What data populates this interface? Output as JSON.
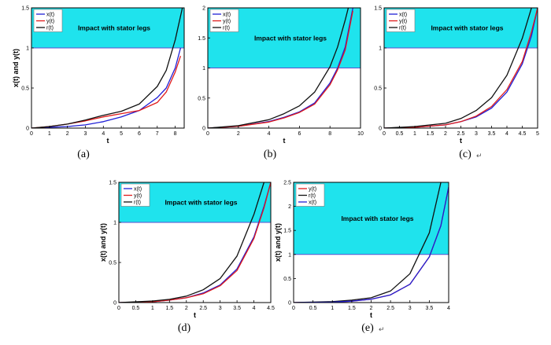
{
  "figure": {
    "caption_marks": [
      "(a)",
      "(b)",
      "(c)",
      "(d)",
      "(e)"
    ]
  },
  "chart_data": [
    {
      "type": "line",
      "panel": "a",
      "caption": "(a)",
      "xlabel": "t",
      "ylabel": "x(t) and y(t)",
      "xlim": [
        0,
        8.5
      ],
      "ylim": [
        0,
        1.5
      ],
      "xticks": [
        "0",
        "1",
        "2",
        "3",
        "4",
        "5",
        "6",
        "7",
        "8"
      ],
      "xtick_values": [
        0,
        1,
        2,
        3,
        4,
        5,
        6,
        7,
        8
      ],
      "yticks": [
        "0",
        "0.5",
        "1",
        "1.5"
      ],
      "ytick_values": [
        0,
        0.5,
        1,
        1.5
      ],
      "annotation": "Impact with stator legs",
      "threshold": 1,
      "legend": [
        "x(t)",
        "y(t)",
        "r(t)"
      ],
      "series": [
        {
          "name": "x(t)",
          "color": "#1f1fd6",
          "x": [
            0,
            1,
            2,
            3,
            4,
            5,
            6,
            7,
            7.5,
            8,
            8.3
          ],
          "y": [
            0,
            0.01,
            0.02,
            0.04,
            0.08,
            0.14,
            0.22,
            0.38,
            0.5,
            0.75,
            1.0
          ]
        },
        {
          "name": "y(t)",
          "color": "#e01b1b",
          "x": [
            0,
            1,
            2,
            3,
            4,
            5,
            6,
            7,
            7.5,
            8,
            8.3
          ],
          "y": [
            0,
            0.02,
            0.05,
            0.09,
            0.14,
            0.18,
            0.22,
            0.32,
            0.45,
            0.7,
            0.9
          ]
        },
        {
          "name": "r(t)",
          "color": "#111111",
          "x": [
            0,
            1,
            2,
            3,
            4,
            5,
            6,
            7,
            7.5,
            8,
            8.4
          ],
          "y": [
            0,
            0.02,
            0.05,
            0.1,
            0.16,
            0.21,
            0.3,
            0.52,
            0.72,
            1.1,
            1.5
          ]
        }
      ]
    },
    {
      "type": "line",
      "panel": "b",
      "caption": "(b)",
      "xlabel": "t",
      "ylabel": "",
      "xlim": [
        0,
        10
      ],
      "ylim": [
        0,
        2
      ],
      "xticks": [
        "0",
        "2",
        "4",
        "6",
        "8",
        "10"
      ],
      "xtick_values": [
        0,
        2,
        4,
        6,
        8,
        10
      ],
      "yticks": [
        "0",
        "0.5",
        "1",
        "1.5",
        "2"
      ],
      "ytick_values": [
        0,
        0.5,
        1,
        1.5,
        2
      ],
      "annotation": "Impact with stator legs",
      "threshold": 1,
      "legend": [
        "x(t)",
        "y(t)",
        "r(t)"
      ],
      "series": [
        {
          "name": "x(t)",
          "color": "#1f1fd6",
          "x": [
            0,
            2,
            4,
            5,
            6,
            7,
            8,
            8.5,
            9,
            9.5
          ],
          "y": [
            0,
            0.03,
            0.11,
            0.18,
            0.27,
            0.42,
            0.75,
            1.0,
            1.35,
            2.0
          ]
        },
        {
          "name": "y(t)",
          "color": "#e01b1b",
          "x": [
            0,
            2,
            4,
            5,
            6,
            7,
            8,
            8.5,
            9,
            9.5
          ],
          "y": [
            0,
            0.03,
            0.1,
            0.17,
            0.26,
            0.4,
            0.72,
            0.97,
            1.3,
            1.95
          ]
        },
        {
          "name": "r(t)",
          "color": "#111111",
          "x": [
            0,
            2,
            4,
            5,
            6,
            7,
            8,
            8.5,
            9,
            9.2
          ],
          "y": [
            0,
            0.04,
            0.14,
            0.24,
            0.37,
            0.6,
            1.02,
            1.35,
            1.8,
            2.0
          ]
        }
      ]
    },
    {
      "type": "line",
      "panel": "c",
      "caption": "(c)",
      "xlabel": "t",
      "ylabel": "",
      "xlim": [
        0,
        5
      ],
      "ylim": [
        0,
        1.5
      ],
      "xticks": [
        "0",
        "0.5",
        "1",
        "1.5",
        "2",
        "2.5",
        "3",
        "3.5",
        "4",
        "4.5",
        "5"
      ],
      "xtick_values": [
        0,
        0.5,
        1,
        1.5,
        2,
        2.5,
        3,
        3.5,
        4,
        4.5,
        5
      ],
      "yticks": [
        "0",
        "0.5",
        "1",
        "1.5"
      ],
      "ytick_values": [
        0,
        0.5,
        1,
        1.5
      ],
      "annotation": "Impact with stator legs",
      "threshold": 1,
      "legend": [
        "x(t)",
        "y(t)",
        "r(t)"
      ],
      "series": [
        {
          "name": "x(t)",
          "color": "#1f1fd6",
          "x": [
            0,
            1,
            2,
            2.5,
            3,
            3.5,
            4,
            4.5,
            4.8,
            5
          ],
          "y": [
            0,
            0.01,
            0.04,
            0.08,
            0.14,
            0.25,
            0.45,
            0.8,
            1.15,
            1.5
          ]
        },
        {
          "name": "y(t)",
          "color": "#e01b1b",
          "x": [
            0,
            1,
            2,
            2.5,
            3,
            3.5,
            4,
            4.5,
            4.8,
            5
          ],
          "y": [
            0,
            0.01,
            0.04,
            0.08,
            0.15,
            0.27,
            0.48,
            0.83,
            1.2,
            1.5
          ]
        },
        {
          "name": "r(t)",
          "color": "#111111",
          "x": [
            0,
            1,
            2,
            2.5,
            3,
            3.5,
            4,
            4.5,
            4.8
          ],
          "y": [
            0,
            0.02,
            0.06,
            0.12,
            0.22,
            0.38,
            0.66,
            1.12,
            1.5
          ]
        }
      ]
    },
    {
      "type": "line",
      "panel": "d",
      "caption": "(d)",
      "xlabel": "t",
      "ylabel": "x(t) and y(t)",
      "xlim": [
        0,
        4.5
      ],
      "ylim": [
        0,
        1.5
      ],
      "xticks": [
        "0",
        "0.5",
        "1",
        "1.5",
        "2",
        "2.5",
        "3",
        "3.5",
        "4",
        "4.5"
      ],
      "xtick_values": [
        0,
        0.5,
        1,
        1.5,
        2,
        2.5,
        3,
        3.5,
        4,
        4.5
      ],
      "yticks": [
        "0",
        "0.5",
        "1",
        "1.5"
      ],
      "ytick_values": [
        0,
        0.5,
        1,
        1.5
      ],
      "annotation": "Impact with stator legs",
      "threshold": 1,
      "legend": [
        "x(t)",
        "y(t)",
        "r(t)"
      ],
      "series": [
        {
          "name": "x(t)",
          "color": "#1f1fd6",
          "x": [
            0,
            1,
            1.5,
            2,
            2.5,
            3,
            3.5,
            4,
            4.3,
            4.5
          ],
          "y": [
            0,
            0.01,
            0.03,
            0.06,
            0.12,
            0.22,
            0.42,
            0.82,
            1.2,
            1.5
          ]
        },
        {
          "name": "y(t)",
          "color": "#e01b1b",
          "x": [
            0,
            1,
            1.5,
            2,
            2.5,
            3,
            3.5,
            4,
            4.3,
            4.5
          ],
          "y": [
            0,
            0.01,
            0.03,
            0.06,
            0.11,
            0.21,
            0.4,
            0.8,
            1.18,
            1.5
          ]
        },
        {
          "name": "r(t)",
          "color": "#111111",
          "x": [
            0,
            1,
            1.5,
            2,
            2.5,
            3,
            3.5,
            4,
            4.3
          ],
          "y": [
            0,
            0.02,
            0.04,
            0.08,
            0.16,
            0.3,
            0.58,
            1.1,
            1.5
          ]
        }
      ]
    },
    {
      "type": "line",
      "panel": "e",
      "caption": "(e)",
      "xlabel": "t",
      "ylabel": "x(t) and y(t)",
      "xlim": [
        0,
        4
      ],
      "ylim": [
        0,
        2.5
      ],
      "xticks": [
        "0",
        "0.5",
        "1",
        "1.5",
        "2",
        "2.5",
        "3",
        "3.5",
        "4"
      ],
      "xtick_values": [
        0,
        0.5,
        1,
        1.5,
        2,
        2.5,
        3,
        3.5,
        4
      ],
      "yticks": [
        "0",
        "0.5",
        "1",
        "1.5",
        "2",
        "2.5"
      ],
      "ytick_values": [
        0,
        0.5,
        1,
        1.5,
        2,
        2.5
      ],
      "annotation": "Impact with stator legs",
      "threshold": 1,
      "legend": [
        "y(t)",
        "r(t)",
        "x(t)"
      ],
      "series": [
        {
          "name": "y(t)",
          "color": "#e01b1b",
          "x": [
            0,
            1,
            1.5,
            2,
            2.5,
            3,
            3.5,
            3.8,
            4
          ],
          "y": [
            0,
            0.01,
            0.03,
            0.07,
            0.16,
            0.38,
            0.95,
            1.6,
            2.4
          ]
        },
        {
          "name": "r(t)",
          "color": "#111111",
          "x": [
            0,
            1,
            1.5,
            2,
            2.5,
            3,
            3.5,
            3.8
          ],
          "y": [
            0,
            0.02,
            0.05,
            0.1,
            0.24,
            0.6,
            1.45,
            2.5
          ]
        },
        {
          "name": "x(t)",
          "color": "#1f1fd6",
          "x": [
            0,
            1,
            1.5,
            2,
            2.5,
            3,
            3.5,
            3.8,
            4
          ],
          "y": [
            0,
            0.01,
            0.03,
            0.07,
            0.16,
            0.38,
            0.95,
            1.6,
            2.4
          ]
        }
      ]
    }
  ]
}
